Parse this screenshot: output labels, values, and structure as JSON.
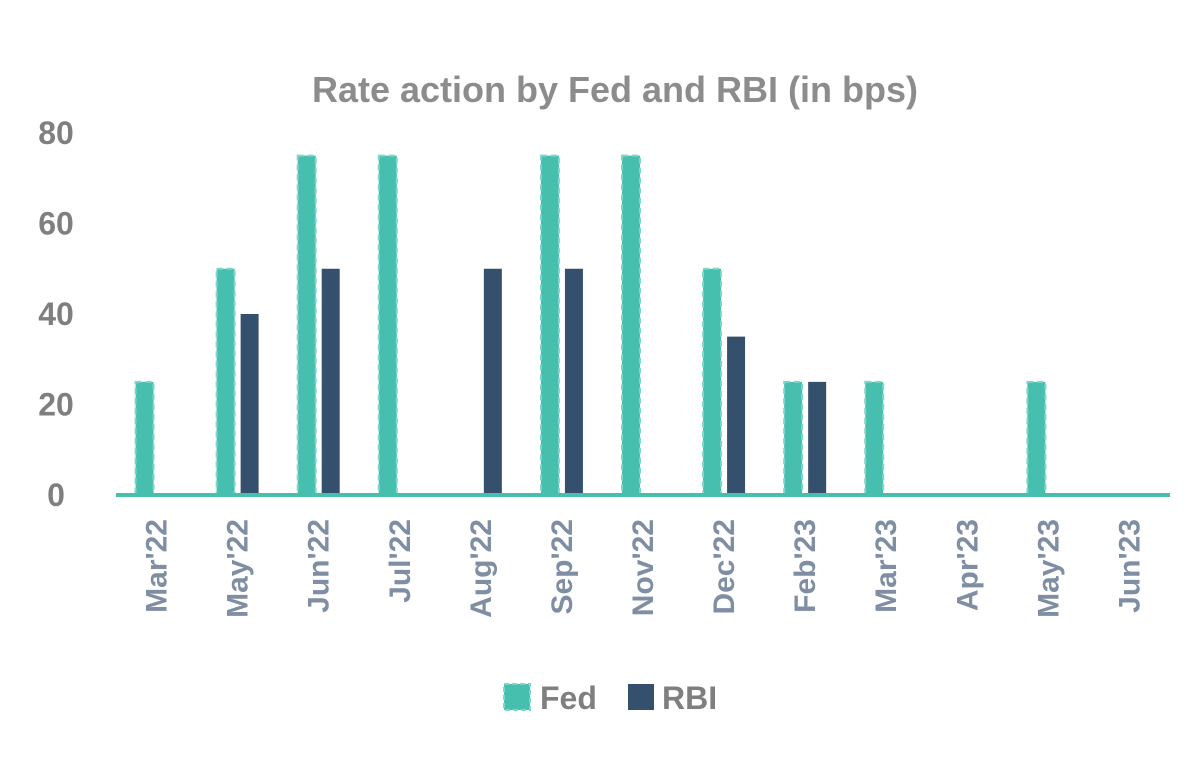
{
  "chart_data": {
    "type": "bar",
    "title": "Rate action by Fed and RBI (in bps)",
    "xlabel": "",
    "ylabel": "",
    "categories": [
      "Mar'22",
      "May'22",
      "Jun'22",
      "Jul'22",
      "Aug'22",
      "Sep'22",
      "Nov'22",
      "Dec'22",
      "Feb'23",
      "Mar'23",
      "Apr'23",
      "May'23",
      "Jun'23"
    ],
    "series": [
      {
        "name": "Fed",
        "values": [
          25,
          50,
          75,
          75,
          0,
          75,
          75,
          50,
          25,
          25,
          0,
          25,
          0
        ],
        "color": "#46bfae"
      },
      {
        "name": "RBI",
        "values": [
          0,
          40,
          50,
          0,
          50,
          50,
          0,
          35,
          25,
          0,
          0,
          0,
          0
        ],
        "color": "#34506d"
      }
    ],
    "ylim": [
      0,
      80
    ],
    "yticks": [
      0,
      20,
      40,
      60,
      80
    ],
    "ytick_labels": [
      "0",
      "20",
      "40",
      "60",
      "80"
    ],
    "grid": false,
    "legend_position": "bottom",
    "axis_color": "#46bfae",
    "tick_label_color": "#7f8ea3"
  }
}
